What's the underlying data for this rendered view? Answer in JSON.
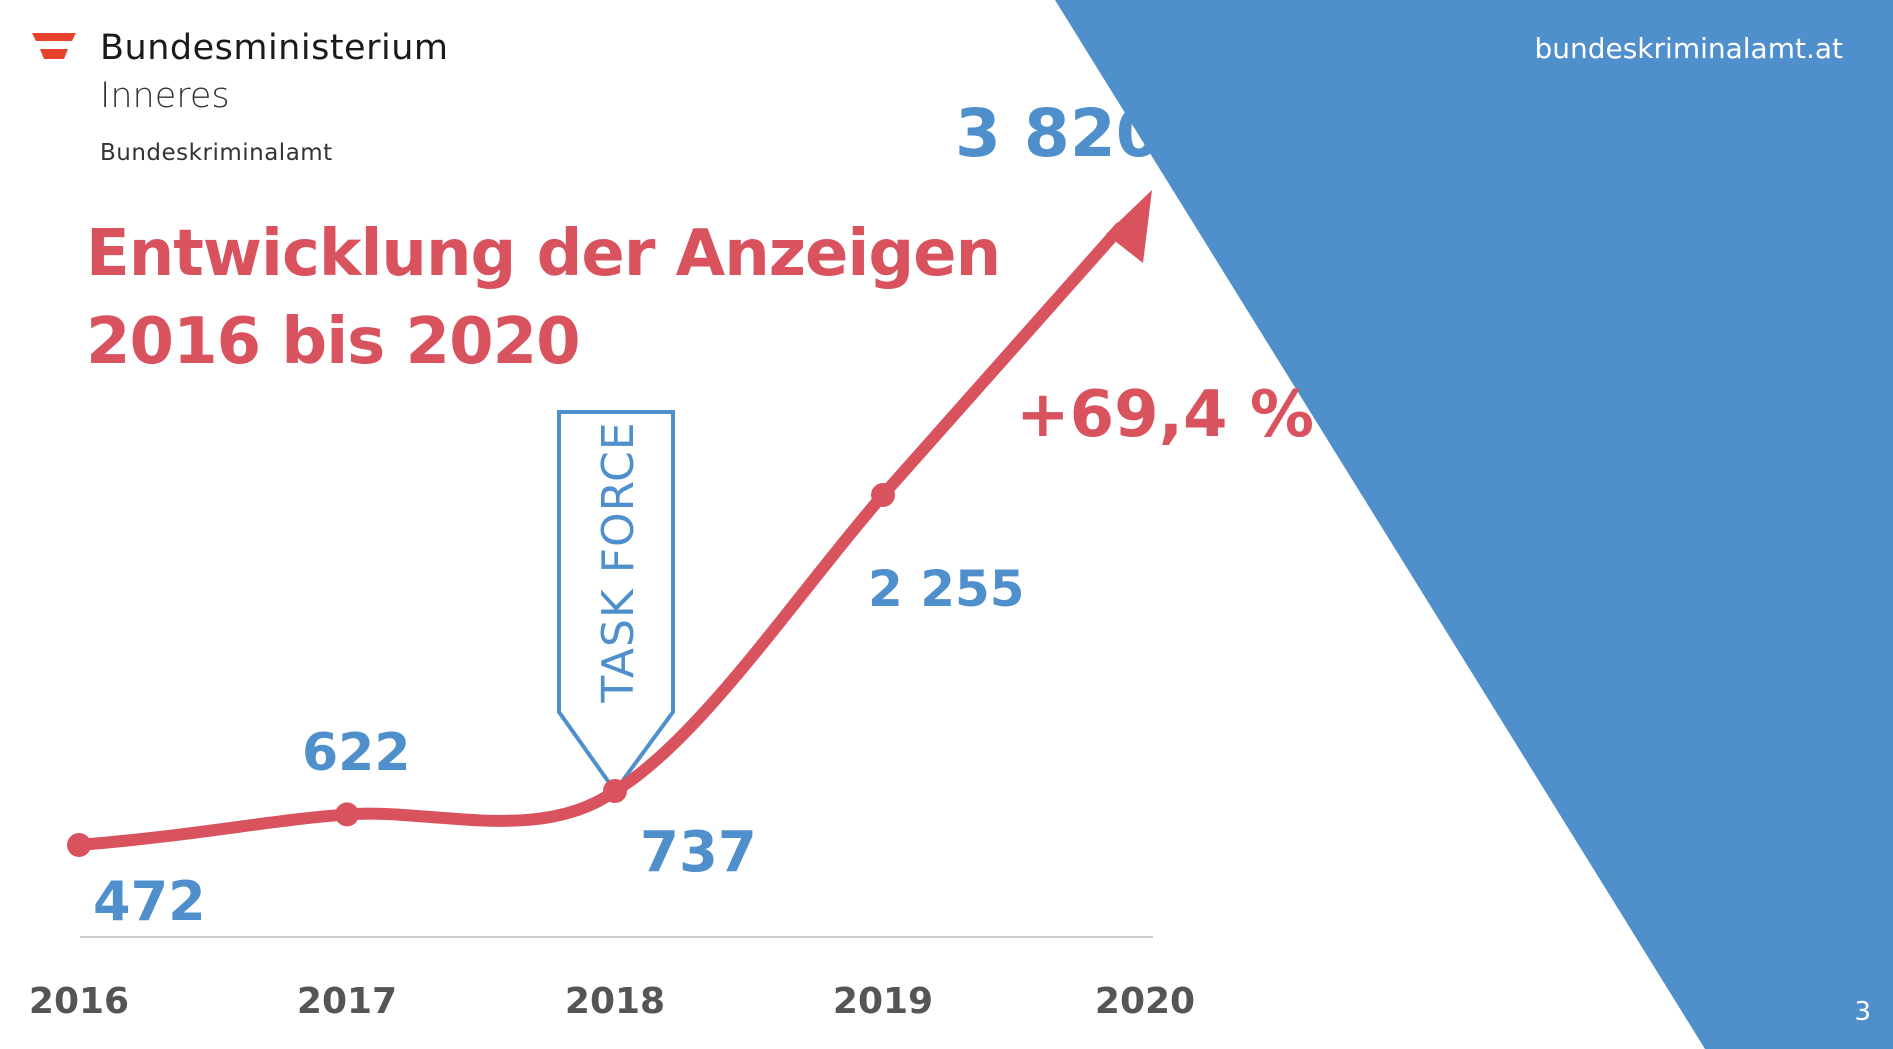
{
  "header": {
    "ministry": "Bundesministerium",
    "ministry_sub": "Inneres",
    "agency": "Bundeskriminalamt",
    "website": "bundeskriminalamt.at"
  },
  "slide": {
    "title_line1": "Entwicklung der Anzeigen",
    "title_line2": "2016 bis 2020",
    "page_number": "3"
  },
  "colors": {
    "accent_red": "#d9535f",
    "accent_blue": "#4f8fcc",
    "flag_red": "#e8412c",
    "axis_text": "#555555"
  },
  "chart_data": {
    "type": "line",
    "categories": [
      "2016",
      "2017",
      "2018",
      "2019",
      "2020"
    ],
    "values": [
      472,
      622,
      737,
      2255,
      3820
    ],
    "value_labels": [
      "472",
      "622",
      "737",
      "2 255",
      "3 820"
    ],
    "annotations": {
      "growth": "+69,4 %",
      "marker": "TASK FORCE",
      "marker_category": "2018"
    },
    "title": "Entwicklung der Anzeigen 2016 bis 2020",
    "xlabel": "",
    "ylabel": "",
    "grid": false,
    "legend": "none"
  },
  "icons": {
    "logo": "austrian-flag-icon"
  }
}
